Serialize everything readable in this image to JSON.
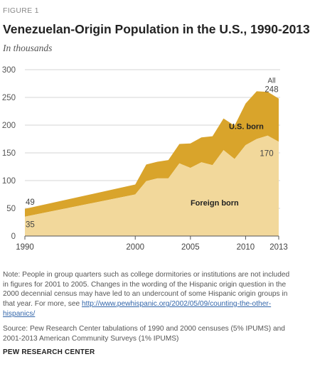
{
  "figure_label": "FIGURE 1",
  "title": "Venezuelan-Origin  Population in the U.S., 1990-2013",
  "subtitle": "In thousands",
  "colors": {
    "us_born": "#d9a42b",
    "foreign_born": "#f2d89b",
    "grid": "#d4d4d4",
    "axis": "#555555"
  },
  "chart_data": {
    "type": "area",
    "stacked": true,
    "x": [
      1990,
      2000,
      2001,
      2002,
      2003,
      2004,
      2005,
      2006,
      2007,
      2008,
      2009,
      2010,
      2011,
      2012,
      2013
    ],
    "xticks": [
      "1990",
      "2000",
      "2005",
      "2010",
      "2013"
    ],
    "ylim": [
      0,
      300
    ],
    "yticks": [
      "0",
      "50",
      "100",
      "150",
      "200",
      "250",
      "300"
    ],
    "grid": true,
    "series": [
      {
        "name": "Foreign born",
        "values": [
          35,
          75,
          99,
          104,
          104,
          131,
          123,
          133,
          128,
          155,
          139,
          164,
          175,
          181,
          170
        ]
      },
      {
        "name": "U.S. born",
        "values": [
          14,
          18,
          30,
          30,
          33,
          35,
          44,
          45,
          52,
          57,
          60,
          75,
          86,
          79,
          78
        ]
      }
    ],
    "total_label_top": "All",
    "labels": {
      "start_total": "49",
      "start_foreign": "35",
      "end_total": "248",
      "end_foreign": "170",
      "us_born": "U.S. born",
      "foreign_born": "Foreign born"
    }
  },
  "note": {
    "text": "Note: People in group quarters such as college dormitories or institutions are not included in figures for 2001 to 2005.  Changes in the wording of the Hispanic origin question in the 2000 decennial census may have led to an undercount of some Hispanic origin groups in that year. For more, see ",
    "link": "http://www.pewhispanic.org/2002/05/09/counting-the-other-hispanics/"
  },
  "source": "Source: Pew Research Center tabulations of 1990 and 2000 censuses (5% IPUMS) and 2001-2013 American Community Surveys (1% IPUMS)",
  "brand": "PEW RESEARCH CENTER"
}
